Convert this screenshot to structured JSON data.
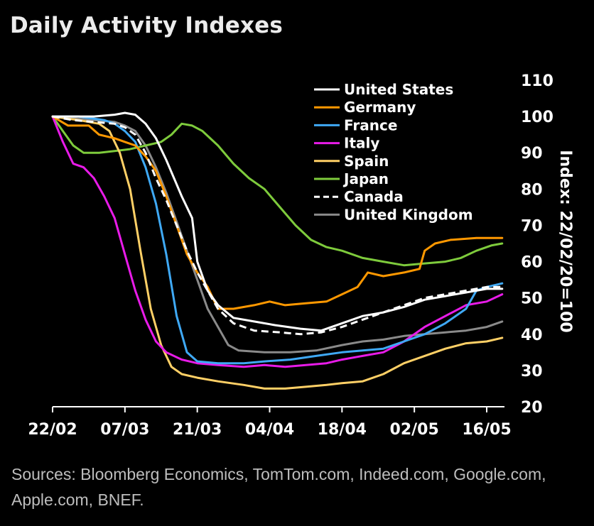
{
  "title": "Daily Activity Indexes",
  "source": "Sources: Bloomberg Economics, TomTom.com, Indeed.com, Google.com, Apple.com, BNEF.",
  "chart_data": {
    "type": "line",
    "title": "Daily Activity Indexes",
    "ylabel": "Index: 22/02/20=100",
    "xlabel": "",
    "ylim": [
      20,
      110
    ],
    "yticks": [
      20,
      30,
      40,
      50,
      60,
      70,
      80,
      90,
      100,
      110
    ],
    "xlim": [
      "2020-02-22",
      "2020-05-21"
    ],
    "xticks": [
      {
        "date": "2020-02-22",
        "label": "22/02"
      },
      {
        "date": "2020-03-07",
        "label": "07/03"
      },
      {
        "date": "2020-03-21",
        "label": "21/03"
      },
      {
        "date": "2020-04-04",
        "label": "04/04"
      },
      {
        "date": "2020-04-18",
        "label": "18/04"
      },
      {
        "date": "2020-05-02",
        "label": "02/05"
      },
      {
        "date": "2020-05-16",
        "label": "16/05"
      }
    ],
    "legend_position": "top-right",
    "grid": false,
    "series": [
      {
        "name": "United States",
        "color": "#ffffff",
        "dashed": false,
        "width": 3,
        "points": [
          [
            "2020-02-22",
            100
          ],
          [
            "2020-02-26",
            100
          ],
          [
            "2020-03-01",
            100
          ],
          [
            "2020-03-05",
            100.5
          ],
          [
            "2020-03-07",
            101
          ],
          [
            "2020-03-09",
            100.5
          ],
          [
            "2020-03-11",
            98
          ],
          [
            "2020-03-13",
            94
          ],
          [
            "2020-03-15",
            88
          ],
          [
            "2020-03-18",
            78
          ],
          [
            "2020-03-20",
            72
          ],
          [
            "2020-03-21",
            60
          ],
          [
            "2020-03-23",
            52
          ],
          [
            "2020-03-25",
            48
          ],
          [
            "2020-03-28",
            44.5
          ],
          [
            "2020-04-01",
            43.5
          ],
          [
            "2020-04-05",
            42.5
          ],
          [
            "2020-04-10",
            41.5
          ],
          [
            "2020-04-14",
            41
          ],
          [
            "2020-04-18",
            43
          ],
          [
            "2020-04-22",
            45
          ],
          [
            "2020-04-26",
            46
          ],
          [
            "2020-04-30",
            47.5
          ],
          [
            "2020-05-04",
            49.5
          ],
          [
            "2020-05-08",
            50.5
          ],
          [
            "2020-05-12",
            51.5
          ],
          [
            "2020-05-16",
            52.5
          ],
          [
            "2020-05-19",
            52.5
          ]
        ]
      },
      {
        "name": "Germany",
        "color": "#ff9800",
        "dashed": false,
        "width": 3,
        "points": [
          [
            "2020-02-22",
            100
          ],
          [
            "2020-02-25",
            97.5
          ],
          [
            "2020-02-29",
            97.5
          ],
          [
            "2020-03-02",
            95
          ],
          [
            "2020-03-05",
            94
          ],
          [
            "2020-03-07",
            93
          ],
          [
            "2020-03-09",
            92
          ],
          [
            "2020-03-11",
            89
          ],
          [
            "2020-03-13",
            85
          ],
          [
            "2020-03-15",
            78
          ],
          [
            "2020-03-17",
            70
          ],
          [
            "2020-03-19",
            62
          ],
          [
            "2020-03-21",
            57
          ],
          [
            "2020-03-23",
            53
          ],
          [
            "2020-03-25",
            47
          ],
          [
            "2020-03-28",
            47
          ],
          [
            "2020-04-01",
            48
          ],
          [
            "2020-04-04",
            49
          ],
          [
            "2020-04-07",
            48
          ],
          [
            "2020-04-11",
            48.5
          ],
          [
            "2020-04-15",
            49
          ],
          [
            "2020-04-18",
            51
          ],
          [
            "2020-04-21",
            53
          ],
          [
            "2020-04-23",
            57
          ],
          [
            "2020-04-26",
            56
          ],
          [
            "2020-04-30",
            57
          ],
          [
            "2020-05-03",
            58
          ],
          [
            "2020-05-04",
            63
          ],
          [
            "2020-05-06",
            65
          ],
          [
            "2020-05-09",
            66
          ],
          [
            "2020-05-14",
            66.5
          ],
          [
            "2020-05-19",
            66.5
          ]
        ]
      },
      {
        "name": "France",
        "color": "#3fa9f5",
        "dashed": false,
        "width": 3,
        "points": [
          [
            "2020-02-22",
            100
          ],
          [
            "2020-02-27",
            100
          ],
          [
            "2020-03-03",
            99
          ],
          [
            "2020-03-05",
            98
          ],
          [
            "2020-03-07",
            96
          ],
          [
            "2020-03-09",
            93
          ],
          [
            "2020-03-11",
            86
          ],
          [
            "2020-03-13",
            76
          ],
          [
            "2020-03-15",
            62
          ],
          [
            "2020-03-17",
            45
          ],
          [
            "2020-03-19",
            35
          ],
          [
            "2020-03-21",
            32.5
          ],
          [
            "2020-03-25",
            32
          ],
          [
            "2020-03-30",
            32
          ],
          [
            "2020-04-03",
            32.5
          ],
          [
            "2020-04-08",
            33
          ],
          [
            "2020-04-13",
            34
          ],
          [
            "2020-04-18",
            35
          ],
          [
            "2020-04-22",
            35.5
          ],
          [
            "2020-04-26",
            36
          ],
          [
            "2020-04-30",
            38
          ],
          [
            "2020-05-04",
            40
          ],
          [
            "2020-05-08",
            43
          ],
          [
            "2020-05-12",
            47
          ],
          [
            "2020-05-14",
            52
          ],
          [
            "2020-05-16",
            53
          ],
          [
            "2020-05-19",
            54
          ]
        ]
      },
      {
        "name": "Italy",
        "color": "#e81be8",
        "dashed": false,
        "width": 3,
        "points": [
          [
            "2020-02-22",
            100
          ],
          [
            "2020-02-24",
            93
          ],
          [
            "2020-02-26",
            87
          ],
          [
            "2020-02-28",
            86
          ],
          [
            "2020-03-01",
            83
          ],
          [
            "2020-03-03",
            78
          ],
          [
            "2020-03-05",
            72
          ],
          [
            "2020-03-07",
            62
          ],
          [
            "2020-03-09",
            52
          ],
          [
            "2020-03-11",
            44
          ],
          [
            "2020-03-13",
            38
          ],
          [
            "2020-03-15",
            35
          ],
          [
            "2020-03-18",
            33
          ],
          [
            "2020-03-21",
            32
          ],
          [
            "2020-03-25",
            31.5
          ],
          [
            "2020-03-30",
            31
          ],
          [
            "2020-04-03",
            31.5
          ],
          [
            "2020-04-07",
            31
          ],
          [
            "2020-04-11",
            31.5
          ],
          [
            "2020-04-15",
            32
          ],
          [
            "2020-04-18",
            33
          ],
          [
            "2020-04-22",
            34
          ],
          [
            "2020-04-26",
            35
          ],
          [
            "2020-04-30",
            38
          ],
          [
            "2020-05-04",
            42
          ],
          [
            "2020-05-08",
            45
          ],
          [
            "2020-05-12",
            48
          ],
          [
            "2020-05-16",
            49
          ],
          [
            "2020-05-19",
            51
          ]
        ]
      },
      {
        "name": "Spain",
        "color": "#ffd066",
        "dashed": false,
        "width": 3,
        "points": [
          [
            "2020-02-22",
            100
          ],
          [
            "2020-02-27",
            99
          ],
          [
            "2020-03-02",
            98
          ],
          [
            "2020-03-04",
            96
          ],
          [
            "2020-03-06",
            90
          ],
          [
            "2020-03-08",
            80
          ],
          [
            "2020-03-10",
            63
          ],
          [
            "2020-03-12",
            47
          ],
          [
            "2020-03-14",
            37
          ],
          [
            "2020-03-16",
            31
          ],
          [
            "2020-03-18",
            29
          ],
          [
            "2020-03-21",
            28
          ],
          [
            "2020-03-25",
            27
          ],
          [
            "2020-03-30",
            26
          ],
          [
            "2020-04-03",
            25
          ],
          [
            "2020-04-07",
            25
          ],
          [
            "2020-04-11",
            25.5
          ],
          [
            "2020-04-15",
            26
          ],
          [
            "2020-04-18",
            26.5
          ],
          [
            "2020-04-22",
            27
          ],
          [
            "2020-04-26",
            29
          ],
          [
            "2020-04-30",
            32
          ],
          [
            "2020-05-04",
            34
          ],
          [
            "2020-05-08",
            36
          ],
          [
            "2020-05-12",
            37.5
          ],
          [
            "2020-05-16",
            38
          ],
          [
            "2020-05-19",
            39
          ]
        ]
      },
      {
        "name": "Japan",
        "color": "#7ecb3c",
        "dashed": false,
        "width": 3,
        "points": [
          [
            "2020-02-22",
            100
          ],
          [
            "2020-02-24",
            96
          ],
          [
            "2020-02-26",
            92
          ],
          [
            "2020-02-28",
            90
          ],
          [
            "2020-03-02",
            90
          ],
          [
            "2020-03-05",
            90.5
          ],
          [
            "2020-03-08",
            91
          ],
          [
            "2020-03-11",
            92
          ],
          [
            "2020-03-14",
            93
          ],
          [
            "2020-03-16",
            95
          ],
          [
            "2020-03-18",
            98
          ],
          [
            "2020-03-20",
            97.5
          ],
          [
            "2020-03-22",
            96
          ],
          [
            "2020-03-25",
            92
          ],
          [
            "2020-03-28",
            87
          ],
          [
            "2020-03-31",
            83
          ],
          [
            "2020-04-03",
            80
          ],
          [
            "2020-04-06",
            75
          ],
          [
            "2020-04-09",
            70
          ],
          [
            "2020-04-12",
            66
          ],
          [
            "2020-04-15",
            64
          ],
          [
            "2020-04-18",
            63
          ],
          [
            "2020-04-22",
            61
          ],
          [
            "2020-04-26",
            60
          ],
          [
            "2020-04-30",
            59
          ],
          [
            "2020-05-04",
            59.5
          ],
          [
            "2020-05-08",
            60
          ],
          [
            "2020-05-11",
            61
          ],
          [
            "2020-05-14",
            63
          ],
          [
            "2020-05-17",
            64.5
          ],
          [
            "2020-05-19",
            65
          ]
        ]
      },
      {
        "name": "Canada",
        "color": "#ffffff",
        "dashed": true,
        "width": 3,
        "points": [
          [
            "2020-02-22",
            100
          ],
          [
            "2020-02-26",
            99
          ],
          [
            "2020-03-01",
            98.5
          ],
          [
            "2020-03-05",
            98
          ],
          [
            "2020-03-07",
            97
          ],
          [
            "2020-03-09",
            95
          ],
          [
            "2020-03-11",
            90
          ],
          [
            "2020-03-13",
            83
          ],
          [
            "2020-03-15",
            77
          ],
          [
            "2020-03-17",
            70
          ],
          [
            "2020-03-19",
            63
          ],
          [
            "2020-03-21",
            57
          ],
          [
            "2020-03-23",
            52
          ],
          [
            "2020-03-25",
            47
          ],
          [
            "2020-03-28",
            43
          ],
          [
            "2020-04-01",
            41
          ],
          [
            "2020-04-06",
            40.5
          ],
          [
            "2020-04-10",
            40
          ],
          [
            "2020-04-14",
            40.5
          ],
          [
            "2020-04-18",
            42
          ],
          [
            "2020-04-22",
            44
          ],
          [
            "2020-04-26",
            46
          ],
          [
            "2020-04-30",
            48
          ],
          [
            "2020-05-04",
            50
          ],
          [
            "2020-05-08",
            51
          ],
          [
            "2020-05-12",
            52
          ],
          [
            "2020-05-16",
            53
          ],
          [
            "2020-05-19",
            53
          ]
        ]
      },
      {
        "name": "United Kingdom",
        "color": "#8a8a8a",
        "dashed": false,
        "width": 3,
        "points": [
          [
            "2020-02-22",
            100
          ],
          [
            "2020-02-26",
            99.5
          ],
          [
            "2020-03-01",
            99
          ],
          [
            "2020-03-05",
            98.5
          ],
          [
            "2020-03-07",
            97.5
          ],
          [
            "2020-03-09",
            96
          ],
          [
            "2020-03-11",
            92
          ],
          [
            "2020-03-13",
            86
          ],
          [
            "2020-03-15",
            79
          ],
          [
            "2020-03-17",
            71
          ],
          [
            "2020-03-19",
            63
          ],
          [
            "2020-03-21",
            55
          ],
          [
            "2020-03-23",
            47
          ],
          [
            "2020-03-25",
            42
          ],
          [
            "2020-03-27",
            37
          ],
          [
            "2020-03-29",
            35.5
          ],
          [
            "2020-04-03",
            35
          ],
          [
            "2020-04-08",
            35
          ],
          [
            "2020-04-13",
            35.5
          ],
          [
            "2020-04-18",
            37
          ],
          [
            "2020-04-22",
            38
          ],
          [
            "2020-04-26",
            38.5
          ],
          [
            "2020-04-30",
            39.5
          ],
          [
            "2020-05-04",
            40
          ],
          [
            "2020-05-08",
            40.5
          ],
          [
            "2020-05-12",
            41
          ],
          [
            "2020-05-16",
            42
          ],
          [
            "2020-05-19",
            43.5
          ]
        ]
      }
    ]
  }
}
